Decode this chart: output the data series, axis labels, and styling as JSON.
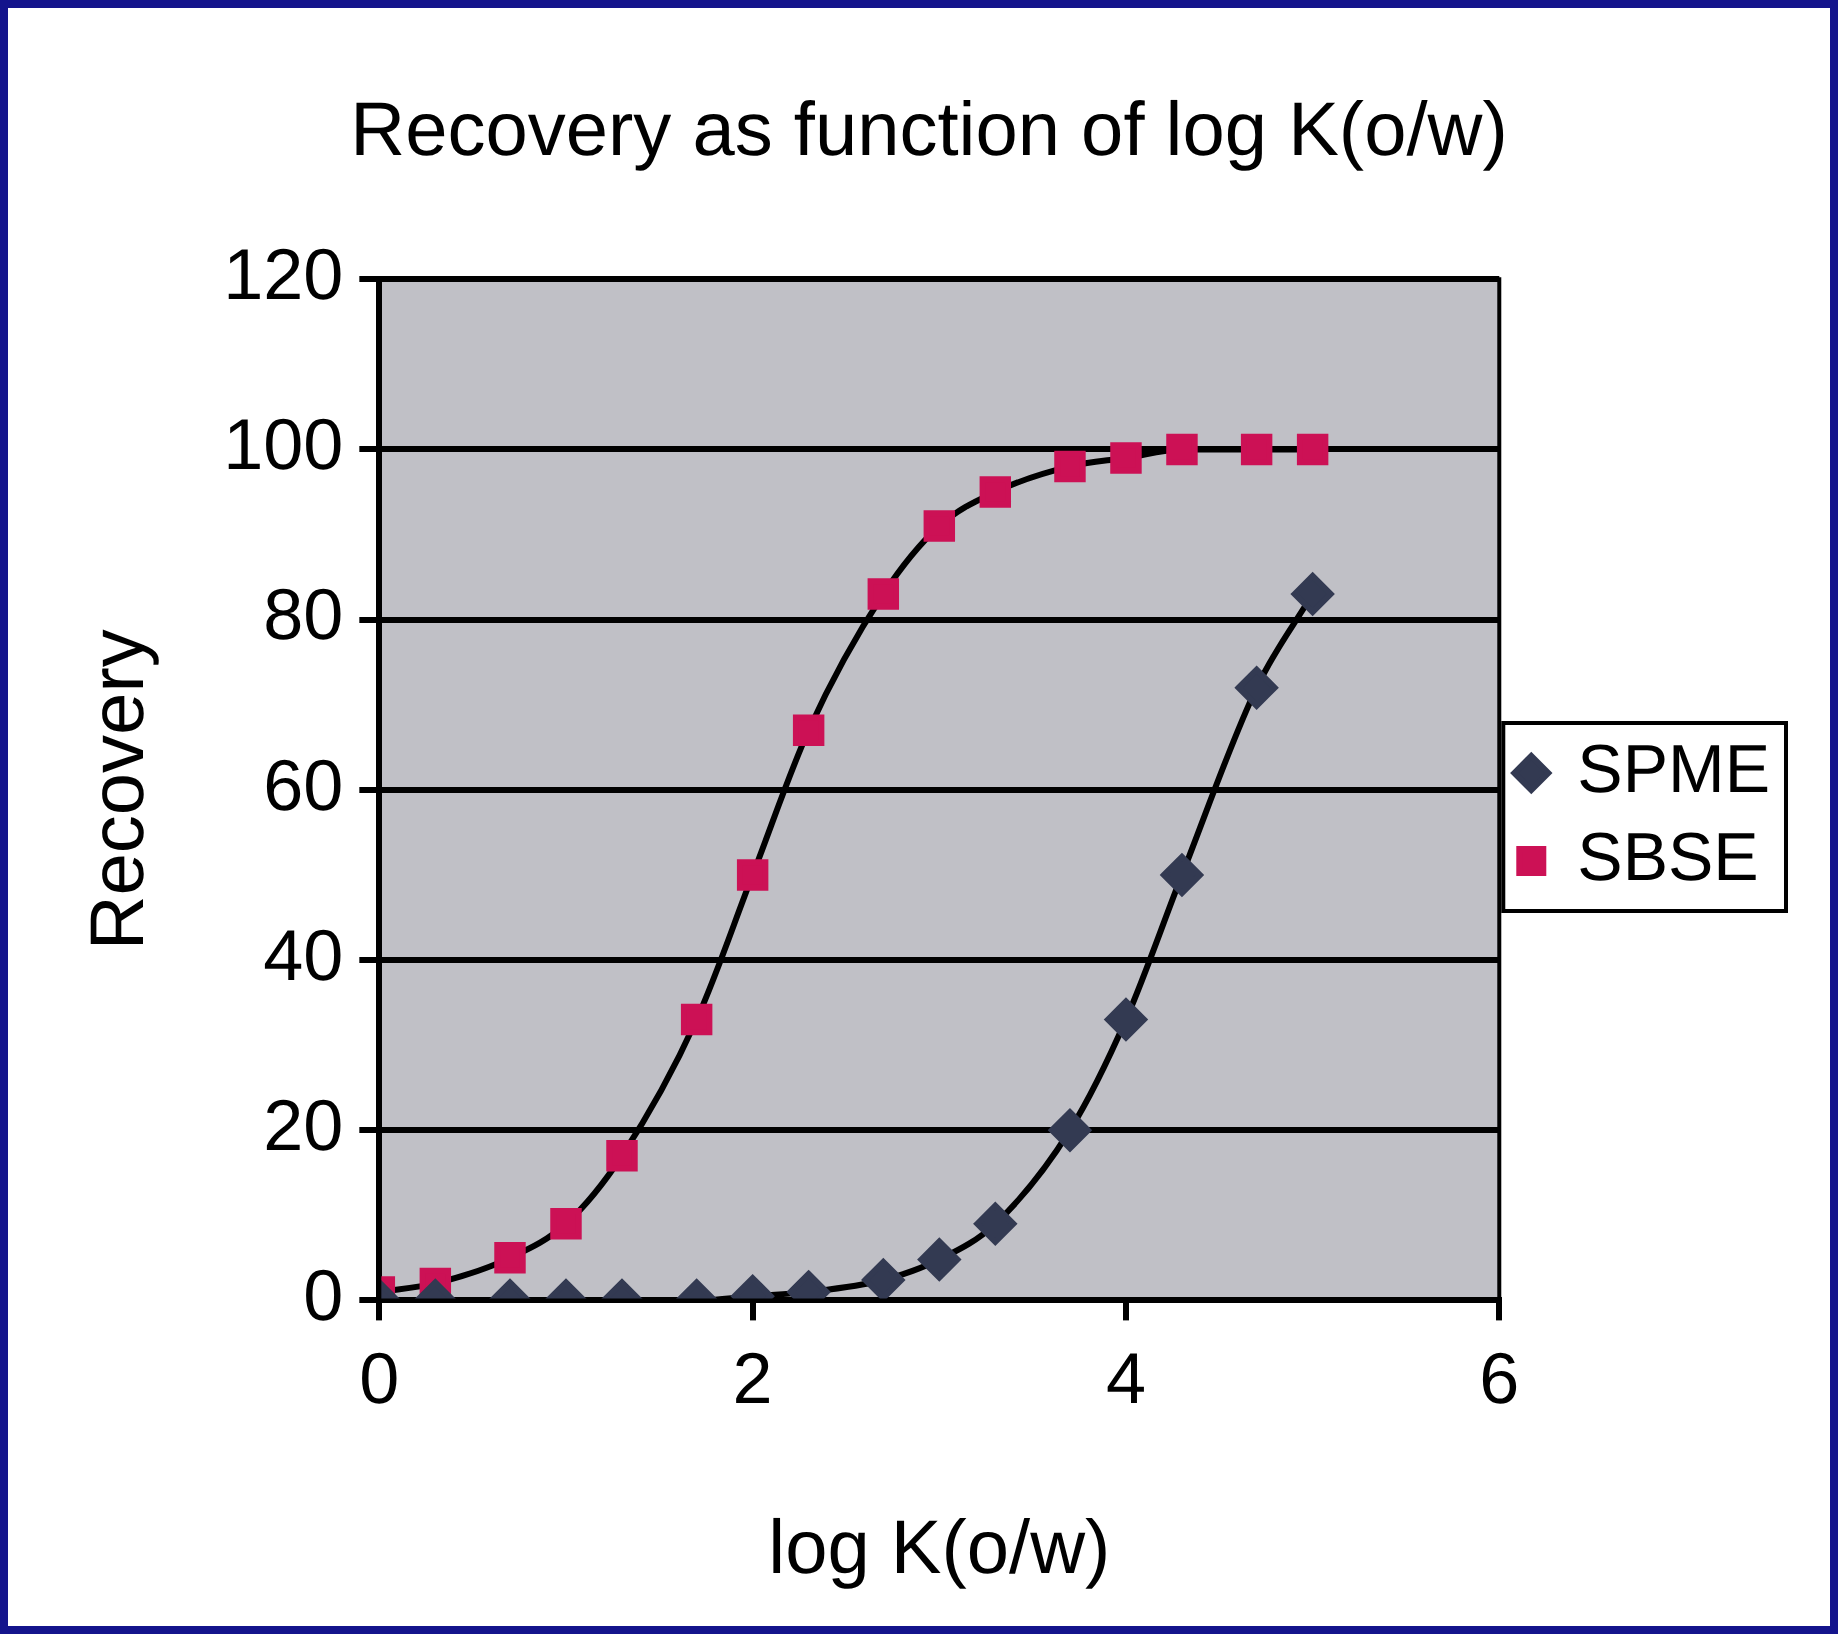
{
  "chart_data": {
    "type": "line",
    "title": "Recovery as function of log K(o/w)",
    "xlabel": "log K(o/w)",
    "ylabel": "Recovery",
    "xlim": [
      0,
      6
    ],
    "xticks": [
      0,
      2,
      4,
      6
    ],
    "ylim": [
      0,
      120
    ],
    "yticks": [
      0,
      20,
      40,
      60,
      80,
      100,
      120
    ],
    "grid": "y",
    "legend": "right",
    "series": [
      {
        "name": "SPME",
        "color": "#333a52",
        "marker": "diamond",
        "x": [
          0,
          0.3,
          0.7,
          1,
          1.3,
          1.7,
          2,
          2.3,
          2.7,
          3,
          3.3,
          3.7,
          4,
          4.3,
          4.7,
          5
        ],
        "values": [
          0,
          0,
          0,
          0,
          0,
          0,
          0.5,
          1,
          2.4,
          4.8,
          9,
          20,
          33,
          50,
          72,
          83
        ]
      },
      {
        "name": "SBSE",
        "color": "#cc1155",
        "marker": "square",
        "x": [
          0,
          0.3,
          0.7,
          1,
          1.3,
          1.7,
          2,
          2.3,
          2.7,
          3,
          3.3,
          3.7,
          4,
          4.3,
          4.7,
          5
        ],
        "values": [
          1,
          2,
          5,
          9,
          17,
          33,
          50,
          67,
          83,
          91,
          95,
          98,
          99,
          100,
          100,
          100
        ]
      }
    ]
  }
}
